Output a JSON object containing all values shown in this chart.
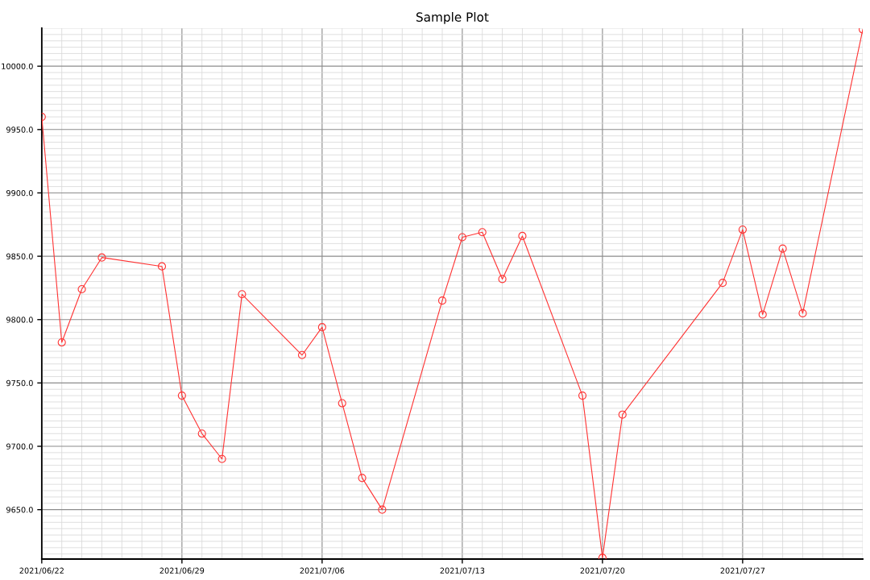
{
  "chart_data": {
    "type": "line",
    "title": "Sample Plot",
    "x": [
      "2021-06-22",
      "2021-06-23",
      "2021-06-24",
      "2021-06-25",
      "2021-06-28",
      "2021-06-29",
      "2021-06-30",
      "2021-07-01",
      "2021-07-02",
      "2021-07-05",
      "2021-07-06",
      "2021-07-07",
      "2021-07-08",
      "2021-07-09",
      "2021-07-12",
      "2021-07-13",
      "2021-07-14",
      "2021-07-15",
      "2021-07-16",
      "2021-07-19",
      "2021-07-20",
      "2021-07-21",
      "2021-07-26",
      "2021-07-27",
      "2021-07-28",
      "2021-07-29",
      "2021-07-30",
      "2021-08-02"
    ],
    "series": [
      {
        "color": "#ff3333",
        "values": [
          9960,
          9782,
          9824,
          9849,
          9842,
          9740,
          9710,
          9690,
          9820,
          9772,
          9794,
          9734,
          9675,
          9650,
          9815,
          9865,
          9869,
          9832,
          9866,
          9740,
          9612,
          9725,
          9829,
          9871,
          9804,
          9856,
          9805,
          10029
        ]
      }
    ],
    "xlim": [
      "2021-06-22",
      "2021-08-02"
    ],
    "xticks": [
      {
        "value": "2021-06-22",
        "label": "2021/06/22"
      },
      {
        "value": "2021-06-29",
        "label": "2021/06/29"
      },
      {
        "value": "2021-07-06",
        "label": "2021/07/06"
      },
      {
        "value": "2021-07-13",
        "label": "2021/07/13"
      },
      {
        "value": "2021-07-20",
        "label": "2021/07/20"
      },
      {
        "value": "2021-07-27",
        "label": "2021/07/27"
      }
    ],
    "ylim": [
      9611,
      10030
    ],
    "yticks": [
      {
        "value": 9650,
        "label": "9650.0"
      },
      {
        "value": 9700,
        "label": "9700.0"
      },
      {
        "value": 9750,
        "label": "9750.0"
      },
      {
        "value": 9800,
        "label": "9800.0"
      },
      {
        "value": 9850,
        "label": "9850.0"
      },
      {
        "value": 9900,
        "label": "9900.0"
      },
      {
        "value": 9950,
        "label": "9950.0"
      },
      {
        "value": 10000,
        "label": "10000.0"
      }
    ],
    "grid": true,
    "marker": "circle",
    "line_style": "solid"
  }
}
